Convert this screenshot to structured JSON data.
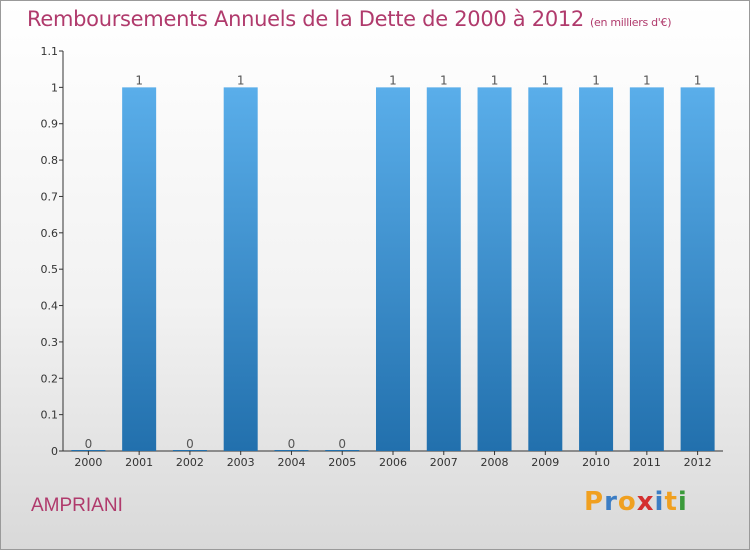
{
  "header": {
    "title": "Remboursements Annuels de la Dette de 2000 à 2012",
    "unit_note": "(en milliers d'€)"
  },
  "commune_name": "AMPRIANI",
  "brand": {
    "letters": [
      "P",
      "r",
      "o",
      "x",
      "i",
      "t",
      "i"
    ],
    "colors": [
      "#f0a020",
      "#3b7dc4",
      "#f0a020",
      "#d43030",
      "#3b7dc4",
      "#f0a020",
      "#3b9a3b"
    ]
  },
  "colors": {
    "title": "#b03a6c",
    "bar_top": "#5aaeea",
    "bar_bottom": "#2270ad"
  },
  "chart_data": {
    "type": "bar",
    "categories": [
      "2000",
      "2001",
      "2002",
      "2003",
      "2004",
      "2005",
      "2006",
      "2007",
      "2008",
      "2009",
      "2010",
      "2011",
      "2012"
    ],
    "values": [
      0,
      1,
      0,
      1,
      0,
      0,
      1,
      1,
      1,
      1,
      1,
      1,
      1
    ],
    "data_labels": [
      "0",
      "1",
      "0",
      "1",
      "0",
      "0",
      "1",
      "1",
      "1",
      "1",
      "1",
      "1",
      "1"
    ],
    "title": "Remboursements Annuels de la Dette de 2000 à 2012",
    "ylim": [
      0,
      1.1
    ],
    "yticks": [
      0,
      0.1,
      0.2,
      0.3,
      0.4,
      0.5,
      0.6,
      0.7,
      0.8,
      0.9,
      1,
      1.1
    ],
    "ytick_labels": [
      "0",
      "0.1",
      "0.2",
      "0.3",
      "0.4",
      "0.5",
      "0.6",
      "0.7",
      "0.8",
      "0.9",
      "1",
      "1.1"
    ],
    "grid": false,
    "legend": "none"
  }
}
